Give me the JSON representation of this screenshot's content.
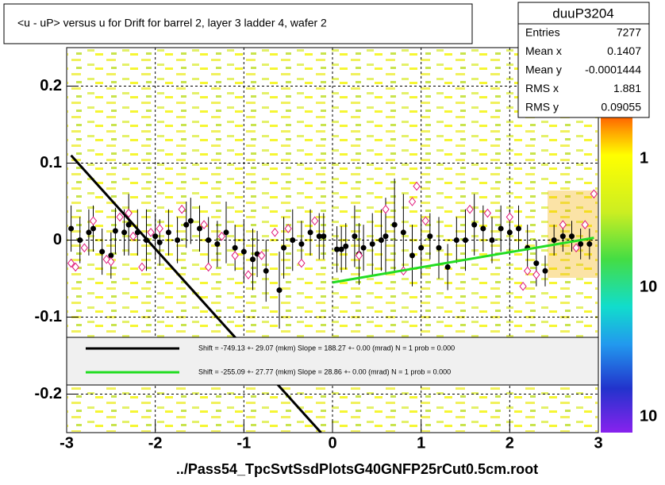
{
  "title": "<u - uP>       versus   u for Drift for barrel 2, layer 3 ladder 4, wafer 2",
  "stats": {
    "title": "duuP3204",
    "rows": [
      [
        "Entries",
        "7277"
      ],
      [
        "Mean x",
        "0.1407"
      ],
      [
        "Mean y",
        "-0.0001444"
      ],
      [
        "RMS x",
        "1.881"
      ],
      [
        "RMS y",
        "0.09055"
      ]
    ]
  },
  "palette_labels": [
    "1",
    "10",
    "10"
  ],
  "chart_data": {
    "type": "scatter",
    "xlabel": "../Pass54_TpcSvtSsdPlotsG40GNFP25rCut0.5cm.root",
    "xlim": [
      -3,
      3
    ],
    "ylim": [
      -0.25,
      0.25
    ],
    "xticks": [
      -3,
      -2,
      -1,
      0,
      1,
      2,
      3
    ],
    "yticks": [
      -0.2,
      -0.1,
      0,
      0.1,
      0.2
    ],
    "grid": true,
    "series": [
      {
        "color": "#000000",
        "marker": "circle",
        "x": [
          -2.95,
          -2.85,
          -2.75,
          -2.7,
          -2.6,
          -2.5,
          -2.45,
          -2.35,
          -2.3,
          -2.2,
          -2.1,
          -2.0,
          -1.95,
          -1.85,
          -1.75,
          -1.65,
          -1.6,
          -1.5,
          -1.4,
          -1.3,
          -1.2,
          -1.1,
          -1.0,
          -0.9,
          -0.85,
          -0.75,
          -0.6,
          -0.55,
          -0.45,
          -0.35,
          -0.25,
          -0.15,
          -0.1,
          0.05,
          0.1,
          0.15,
          0.25,
          0.3,
          0.35,
          0.45,
          0.55,
          0.6,
          0.7,
          0.8,
          0.9,
          1.0,
          1.1,
          1.2,
          1.3,
          1.4,
          1.5,
          1.6,
          1.7,
          1.8,
          1.9,
          2.0,
          2.1,
          2.2,
          2.3,
          2.4,
          2.5,
          2.6,
          2.7,
          2.8,
          2.9
        ],
        "values": [
          0.015,
          0.0,
          0.01,
          0.015,
          -0.015,
          -0.02,
          0.012,
          0.01,
          0.02,
          0.01,
          0.0,
          0.005,
          -0.003,
          0.01,
          0.0,
          0.02,
          0.025,
          0.015,
          0.0,
          -0.005,
          0.01,
          -0.01,
          -0.015,
          -0.025,
          -0.018,
          -0.04,
          -0.065,
          -0.01,
          0.0,
          -0.005,
          0.01,
          0.005,
          0.005,
          -0.012,
          -0.012,
          -0.008,
          0.005,
          -0.018,
          -0.01,
          -0.005,
          0.0,
          0.005,
          0.02,
          0.01,
          -0.02,
          -0.01,
          0.005,
          -0.01,
          -0.035,
          0.0,
          0.0,
          0.02,
          0.015,
          0.0,
          0.015,
          0.01,
          0.015,
          -0.01,
          -0.03,
          -0.04,
          0.0,
          0.005,
          0.005,
          -0.005,
          -0.005
        ],
        "errors": [
          0.03,
          0.03,
          0.03,
          0.03,
          0.03,
          0.03,
          0.03,
          0.03,
          0.04,
          0.03,
          0.04,
          0.03,
          0.03,
          0.03,
          0.03,
          0.03,
          0.03,
          0.03,
          0.03,
          0.03,
          0.04,
          0.03,
          0.04,
          0.04,
          0.03,
          0.04,
          0.05,
          0.04,
          0.04,
          0.03,
          0.03,
          0.03,
          0.03,
          0.03,
          0.03,
          0.03,
          0.04,
          0.04,
          0.03,
          0.04,
          0.04,
          0.05,
          0.06,
          0.05,
          0.04,
          0.04,
          0.03,
          0.04,
          0.03,
          0.03,
          0.04,
          0.04,
          0.03,
          0.03,
          0.03,
          0.03,
          0.03,
          0.03,
          0.03,
          0.02,
          0.02,
          0.02,
          0.02,
          0.02,
          0.02
        ]
      },
      {
        "color": "#e0187a",
        "marker": "diamond",
        "x": [
          -2.95,
          -2.9,
          -2.8,
          -2.7,
          -2.55,
          -2.5,
          -2.4,
          -2.3,
          -2.25,
          -2.15,
          -2.05,
          -1.95,
          -1.7,
          -1.45,
          -1.4,
          -1.25,
          -1.1,
          -0.95,
          -0.8,
          -0.65,
          -0.5,
          -0.35,
          -0.2,
          0.3,
          0.6,
          0.8,
          0.9,
          0.95,
          1.05,
          1.55,
          1.75,
          2.0,
          2.15,
          2.2,
          2.3,
          2.6,
          2.75,
          2.85,
          2.95
        ],
        "values": [
          -0.03,
          -0.035,
          -0.01,
          0.025,
          -0.025,
          -0.028,
          0.03,
          0.035,
          0.005,
          -0.035,
          0.01,
          0.015,
          0.04,
          0.02,
          -0.035,
          0.005,
          -0.02,
          -0.045,
          -0.02,
          0.01,
          0.015,
          -0.03,
          0.025,
          -0.02,
          0.04,
          -0.04,
          0.05,
          0.07,
          0.025,
          0.04,
          0.035,
          0.03,
          -0.06,
          -0.04,
          -0.045,
          0.02,
          -0.01,
          0.02,
          0.06
        ]
      },
      {
        "name": "Shift =  -749.13 +- 29.07 (mkm) Slope =    188.27 +- 0.00 (mrad)  N = 1 prob = 0.000",
        "color": "#000000",
        "marker": "line",
        "x": [
          -2.95,
          -0.13
        ],
        "values": [
          0.11,
          -0.25
        ]
      },
      {
        "name": "Shift =  -255.09 +- 27.77 (mkm) Slope =    28.86 +- 0.00 (mrad)  N = 1 prob = 0.000",
        "color": "#22dd22",
        "marker": "line",
        "x": [
          0,
          2.95
        ],
        "values": [
          -0.055,
          0.003
        ]
      }
    ]
  }
}
